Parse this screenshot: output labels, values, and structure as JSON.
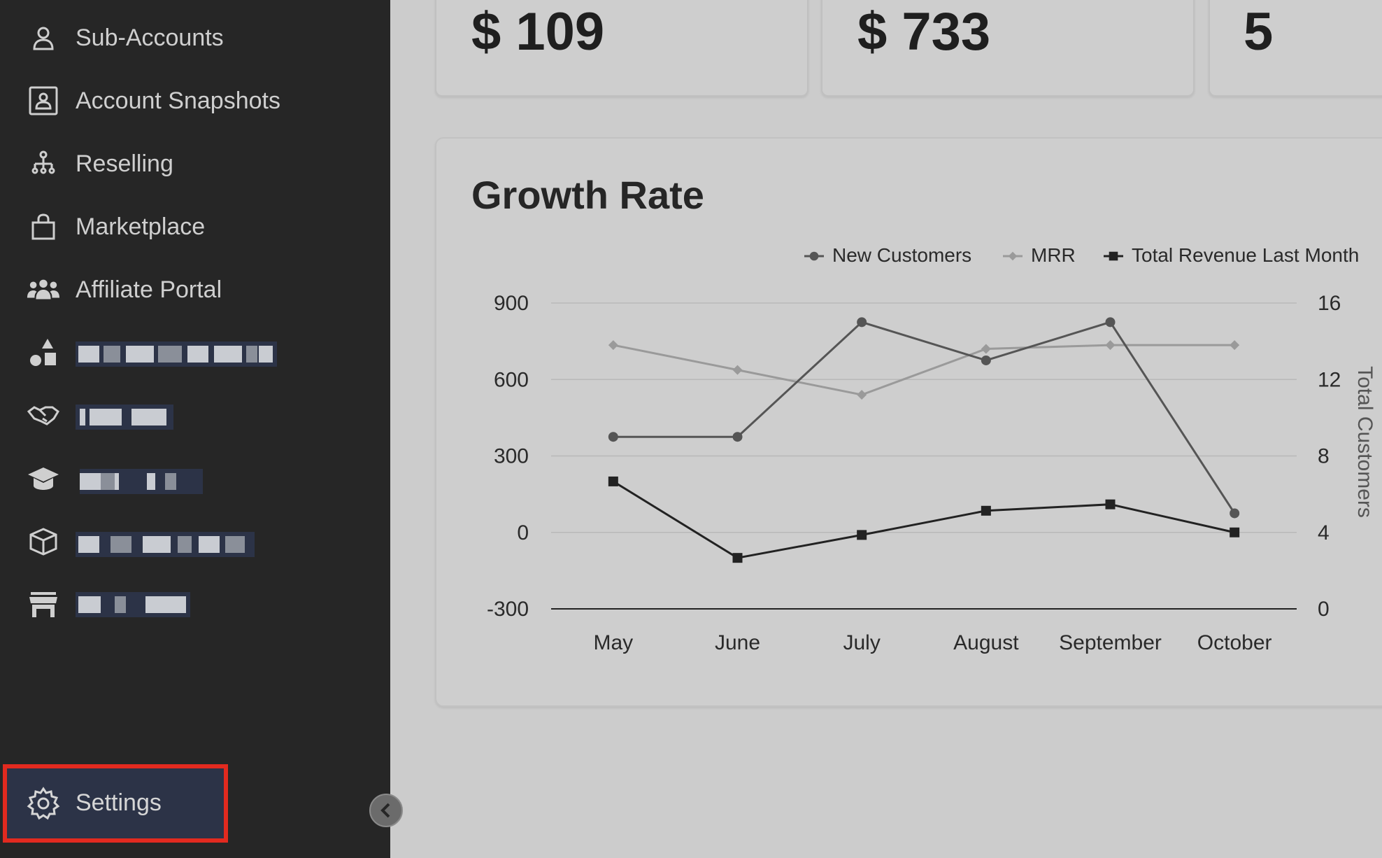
{
  "sidebar": {
    "items": [
      {
        "label": "Sub-Accounts",
        "icon": "user-icon"
      },
      {
        "label": "Account Snapshots",
        "icon": "contact-card-icon"
      },
      {
        "label": "Reselling",
        "icon": "network-icon"
      },
      {
        "label": "Marketplace",
        "icon": "shopping-bag-icon"
      },
      {
        "label": "Affiliate Portal",
        "icon": "users-icon"
      }
    ],
    "settings_label": "Settings"
  },
  "stats": {
    "card1_value": "$ 109",
    "card2_value": "$ 733",
    "card3_value": "5"
  },
  "chart": {
    "title": "Growth Rate",
    "right_axis_label": "Total Customers",
    "legend": [
      "New Customers",
      "MRR",
      "Total Revenue Last Month"
    ]
  },
  "colors": {
    "sidebar_bg": "#262626",
    "main_bg": "#cccccc",
    "new_customers": "#555555",
    "mrr": "#9a9a9a",
    "total_revenue": "#222222",
    "highlight": "#e22a1f"
  },
  "chart_data": {
    "type": "line",
    "categories": [
      "May",
      "June",
      "July",
      "August",
      "September",
      "October"
    ],
    "left_axis": {
      "ticks": [
        900,
        600,
        300,
        0,
        -300
      ],
      "range": [
        -300,
        900
      ]
    },
    "right_axis": {
      "ticks": [
        16,
        12,
        8,
        4,
        0
      ],
      "range": [
        0,
        16
      ],
      "label": "Total Customers"
    },
    "series": [
      {
        "name": "New Customers",
        "axis": "right",
        "values": [
          9,
          9,
          15,
          13,
          15,
          5
        ]
      },
      {
        "name": "MRR",
        "axis": "right",
        "values": [
          13.8,
          12.5,
          11.2,
          13.6,
          13.8,
          13.8
        ]
      },
      {
        "name": "Total Revenue Last Month",
        "axis": "left",
        "values": [
          200,
          -100,
          -10,
          85,
          110,
          0
        ]
      }
    ],
    "legend_position": "top-right",
    "grid": true
  }
}
